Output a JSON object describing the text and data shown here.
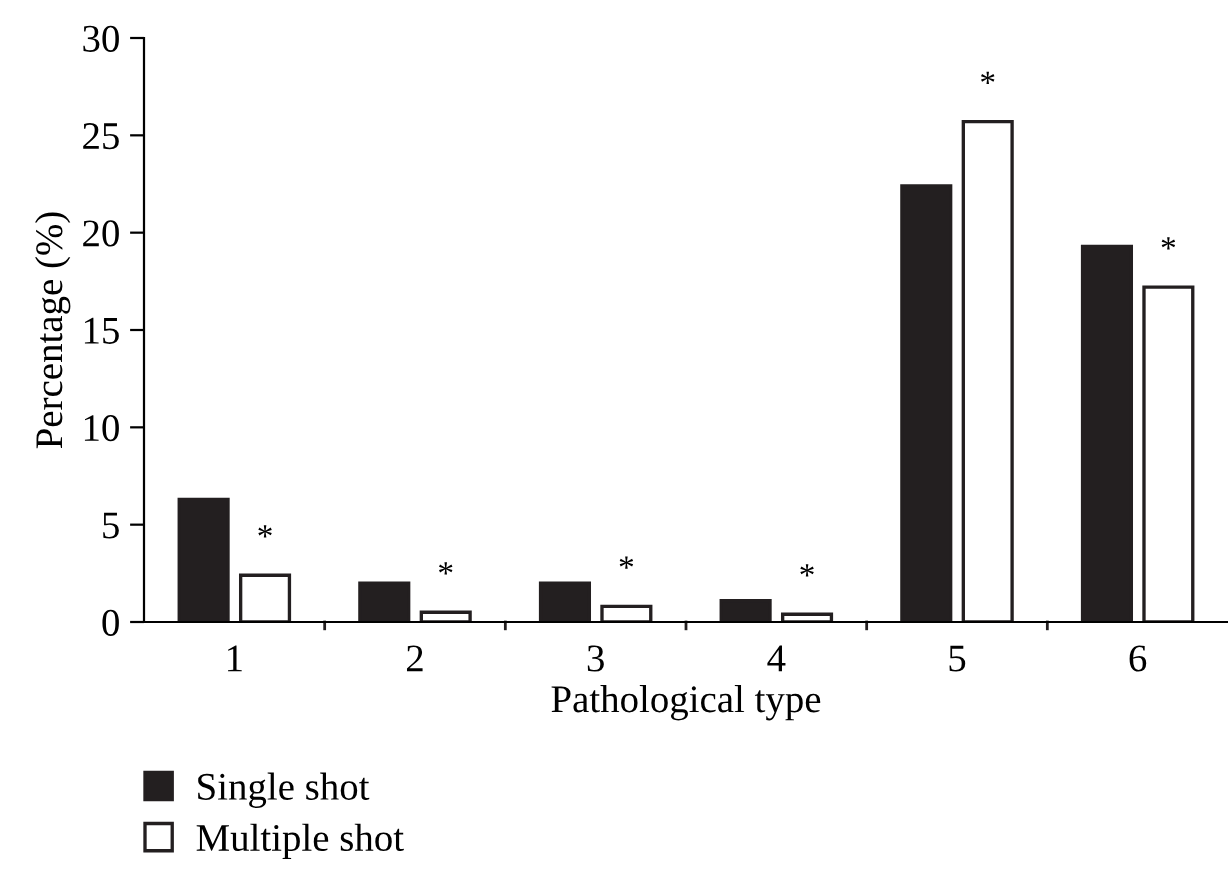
{
  "chart_data": {
    "type": "bar",
    "xlabel": "Pathological type",
    "ylabel": "Percentage (%)",
    "categories": [
      "1",
      "2",
      "3",
      "4",
      "5",
      "6"
    ],
    "series": [
      {
        "name": "Single shot",
        "color": "#231f20",
        "values": [
          6.3,
          2.0,
          2.0,
          1.1,
          22.4,
          19.3
        ]
      },
      {
        "name": "Multiple shot",
        "color": "#ffffff",
        "values": [
          2.4,
          0.5,
          0.8,
          0.4,
          25.7,
          17.2
        ]
      }
    ],
    "ylim": [
      0,
      30
    ],
    "yticks": [
      0,
      5,
      10,
      15,
      20,
      25,
      30
    ],
    "grid": false,
    "legend": "bottom left",
    "annotations": [
      {
        "text": "*",
        "x": "1",
        "y": 2.4
      },
      {
        "text": "*",
        "x": "2",
        "y": 0.5
      },
      {
        "text": "*",
        "x": "3",
        "y": 0.8
      },
      {
        "text": "*",
        "x": "4",
        "y": 0.4
      },
      {
        "text": "*",
        "x": "5",
        "y": 25.7
      },
      {
        "text": "*",
        "x": "6",
        "y": 17.2
      }
    ]
  }
}
